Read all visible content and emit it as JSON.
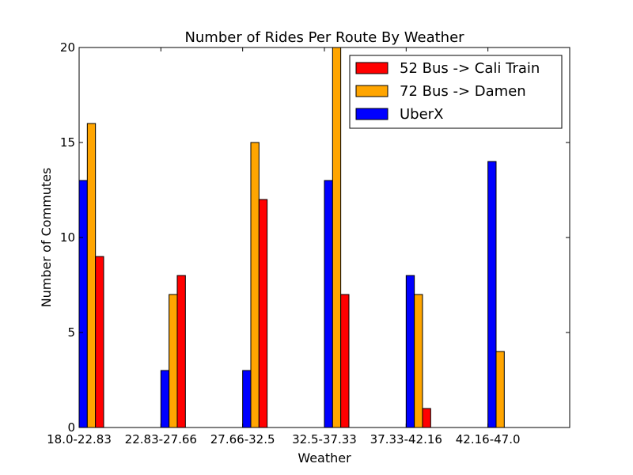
{
  "chart_data": {
    "type": "bar",
    "title": "Number of Rides Per Route By Weather",
    "xlabel": "Weather",
    "ylabel": "Number of Commutes",
    "categories": [
      "18.0-22.83",
      "22.83-27.66",
      "27.66-32.5",
      "32.5-37.33",
      "37.33-42.16",
      "42.16-47.0"
    ],
    "ylim": [
      0,
      20
    ],
    "yticks": [
      0,
      5,
      10,
      15,
      20
    ],
    "grid": false,
    "legend": {
      "position": "top-right"
    },
    "series": [
      {
        "name": "52 Bus -> Cali Train",
        "color": "#ff0000",
        "values": [
          9,
          8,
          12,
          7,
          1,
          0
        ]
      },
      {
        "name": "72 Bus -> Damen",
        "color": "#ffa500",
        "values": [
          16,
          7,
          15,
          20,
          7,
          4
        ]
      },
      {
        "name": "UberX",
        "color": "#0000ff",
        "values": [
          13,
          3,
          3,
          13,
          8,
          14
        ]
      }
    ]
  }
}
